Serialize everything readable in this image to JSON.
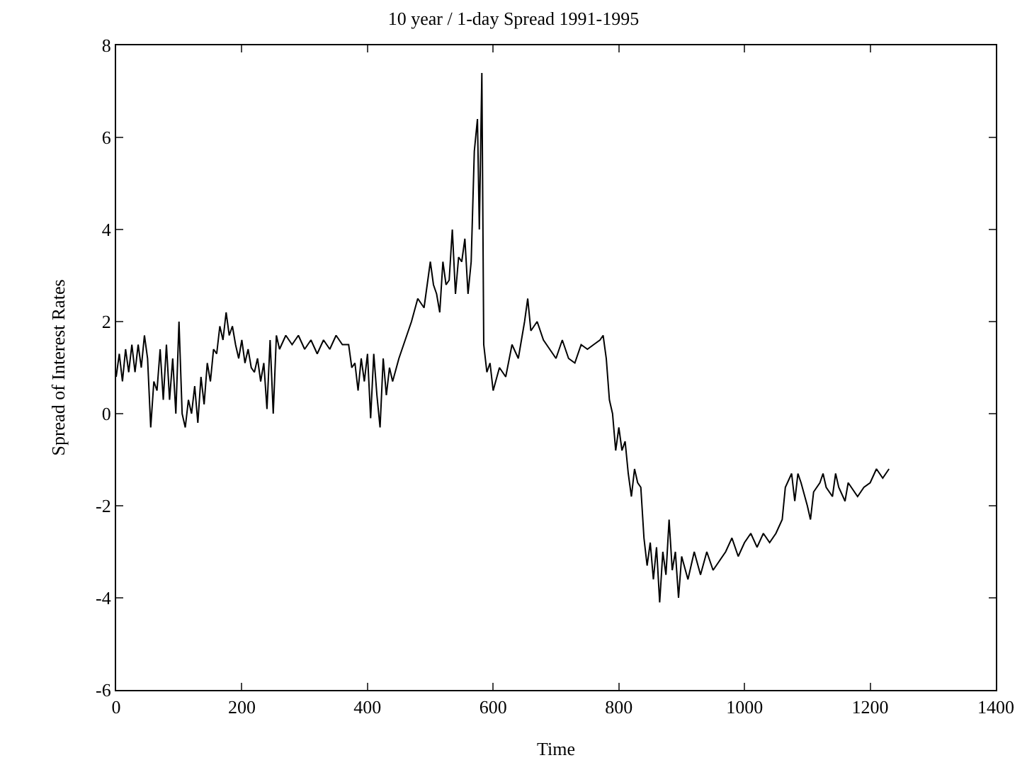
{
  "chart_data": {
    "type": "line",
    "title": "10 year / 1-day Spread 1991-1995",
    "xlabel": "Time",
    "ylabel": "Spread of Interest Rates",
    "xlim": [
      0,
      1400
    ],
    "xticks": [
      0,
      200,
      400,
      600,
      800,
      1000,
      1200,
      1400
    ],
    "ylim": [
      -6,
      8
    ],
    "yticks": [
      -6,
      -4,
      -2,
      0,
      2,
      4,
      6,
      8
    ],
    "grid": false,
    "marker": "none",
    "line_style": "solid",
    "series": [
      {
        "color": "#000000",
        "x": [
          0,
          5,
          10,
          15,
          20,
          25,
          30,
          35,
          40,
          45,
          50,
          55,
          60,
          65,
          70,
          75,
          80,
          85,
          90,
          95,
          100,
          105,
          110,
          115,
          120,
          125,
          130,
          135,
          140,
          145,
          150,
          155,
          160,
          165,
          170,
          175,
          180,
          185,
          190,
          195,
          200,
          205,
          210,
          215,
          220,
          225,
          230,
          235,
          240,
          245,
          250,
          255,
          260,
          270,
          280,
          290,
          300,
          310,
          320,
          330,
          340,
          350,
          360,
          370,
          375,
          380,
          385,
          390,
          395,
          400,
          405,
          410,
          415,
          420,
          425,
          430,
          435,
          440,
          450,
          460,
          470,
          480,
          490,
          500,
          505,
          510,
          515,
          520,
          525,
          530,
          535,
          540,
          545,
          550,
          555,
          560,
          565,
          570,
          575,
          578,
          582,
          585,
          590,
          595,
          600,
          610,
          620,
          630,
          640,
          650,
          655,
          660,
          670,
          680,
          690,
          700,
          710,
          720,
          730,
          740,
          750,
          760,
          770,
          775,
          780,
          785,
          790,
          795,
          800,
          805,
          810,
          815,
          820,
          825,
          830,
          835,
          840,
          845,
          850,
          855,
          860,
          865,
          870,
          875,
          880,
          885,
          890,
          895,
          900,
          910,
          920,
          930,
          940,
          950,
          960,
          970,
          980,
          990,
          1000,
          1010,
          1020,
          1030,
          1040,
          1050,
          1060,
          1065,
          1075,
          1080,
          1085,
          1090,
          1100,
          1105,
          1110,
          1120,
          1125,
          1130,
          1140,
          1145,
          1150,
          1160,
          1165,
          1170,
          1180,
          1190,
          1200,
          1210,
          1220,
          1230
        ],
        "values": [
          0.8,
          1.3,
          0.7,
          1.4,
          0.9,
          1.5,
          0.9,
          1.5,
          1.0,
          1.7,
          1.2,
          -0.3,
          0.7,
          0.5,
          1.4,
          0.3,
          1.5,
          0.3,
          1.2,
          0.0,
          2.0,
          0.0,
          -0.3,
          0.3,
          0.0,
          0.6,
          -0.2,
          0.8,
          0.2,
          1.1,
          0.7,
          1.4,
          1.3,
          1.9,
          1.6,
          2.2,
          1.7,
          1.9,
          1.5,
          1.2,
          1.6,
          1.1,
          1.4,
          1.0,
          0.9,
          1.2,
          0.7,
          1.1,
          0.1,
          1.6,
          0.0,
          1.7,
          1.4,
          1.7,
          1.5,
          1.7,
          1.4,
          1.6,
          1.3,
          1.6,
          1.4,
          1.7,
          1.5,
          1.5,
          1.0,
          1.1,
          0.5,
          1.2,
          0.7,
          1.3,
          -0.1,
          1.3,
          0.4,
          -0.3,
          1.2,
          0.4,
          1.0,
          0.7,
          1.2,
          1.6,
          2.0,
          2.5,
          2.3,
          3.3,
          2.8,
          2.6,
          2.2,
          3.3,
          2.8,
          2.9,
          4.0,
          2.6,
          3.4,
          3.3,
          3.8,
          2.6,
          3.3,
          5.7,
          6.4,
          4.0,
          7.4,
          1.5,
          0.9,
          1.1,
          0.5,
          1.0,
          0.8,
          1.5,
          1.2,
          2.0,
          2.5,
          1.8,
          2.0,
          1.6,
          1.4,
          1.2,
          1.6,
          1.2,
          1.1,
          1.5,
          1.4,
          1.5,
          1.6,
          1.7,
          1.2,
          0.3,
          0.0,
          -0.8,
          -0.3,
          -0.8,
          -0.6,
          -1.3,
          -1.8,
          -1.2,
          -1.5,
          -1.6,
          -2.7,
          -3.3,
          -2.8,
          -3.6,
          -2.9,
          -4.1,
          -3.0,
          -3.5,
          -2.3,
          -3.4,
          -3.0,
          -4.0,
          -3.1,
          -3.6,
          -3.0,
          -3.5,
          -3.0,
          -3.4,
          -3.2,
          -3.0,
          -2.7,
          -3.1,
          -2.8,
          -2.6,
          -2.9,
          -2.6,
          -2.8,
          -2.6,
          -2.3,
          -1.6,
          -1.3,
          -1.9,
          -1.3,
          -1.5,
          -2.0,
          -2.3,
          -1.7,
          -1.5,
          -1.3,
          -1.6,
          -1.8,
          -1.3,
          -1.6,
          -1.9,
          -1.5,
          -1.6,
          -1.8,
          -1.6,
          -1.5,
          -1.2,
          -1.4,
          -1.2
        ]
      }
    ]
  }
}
